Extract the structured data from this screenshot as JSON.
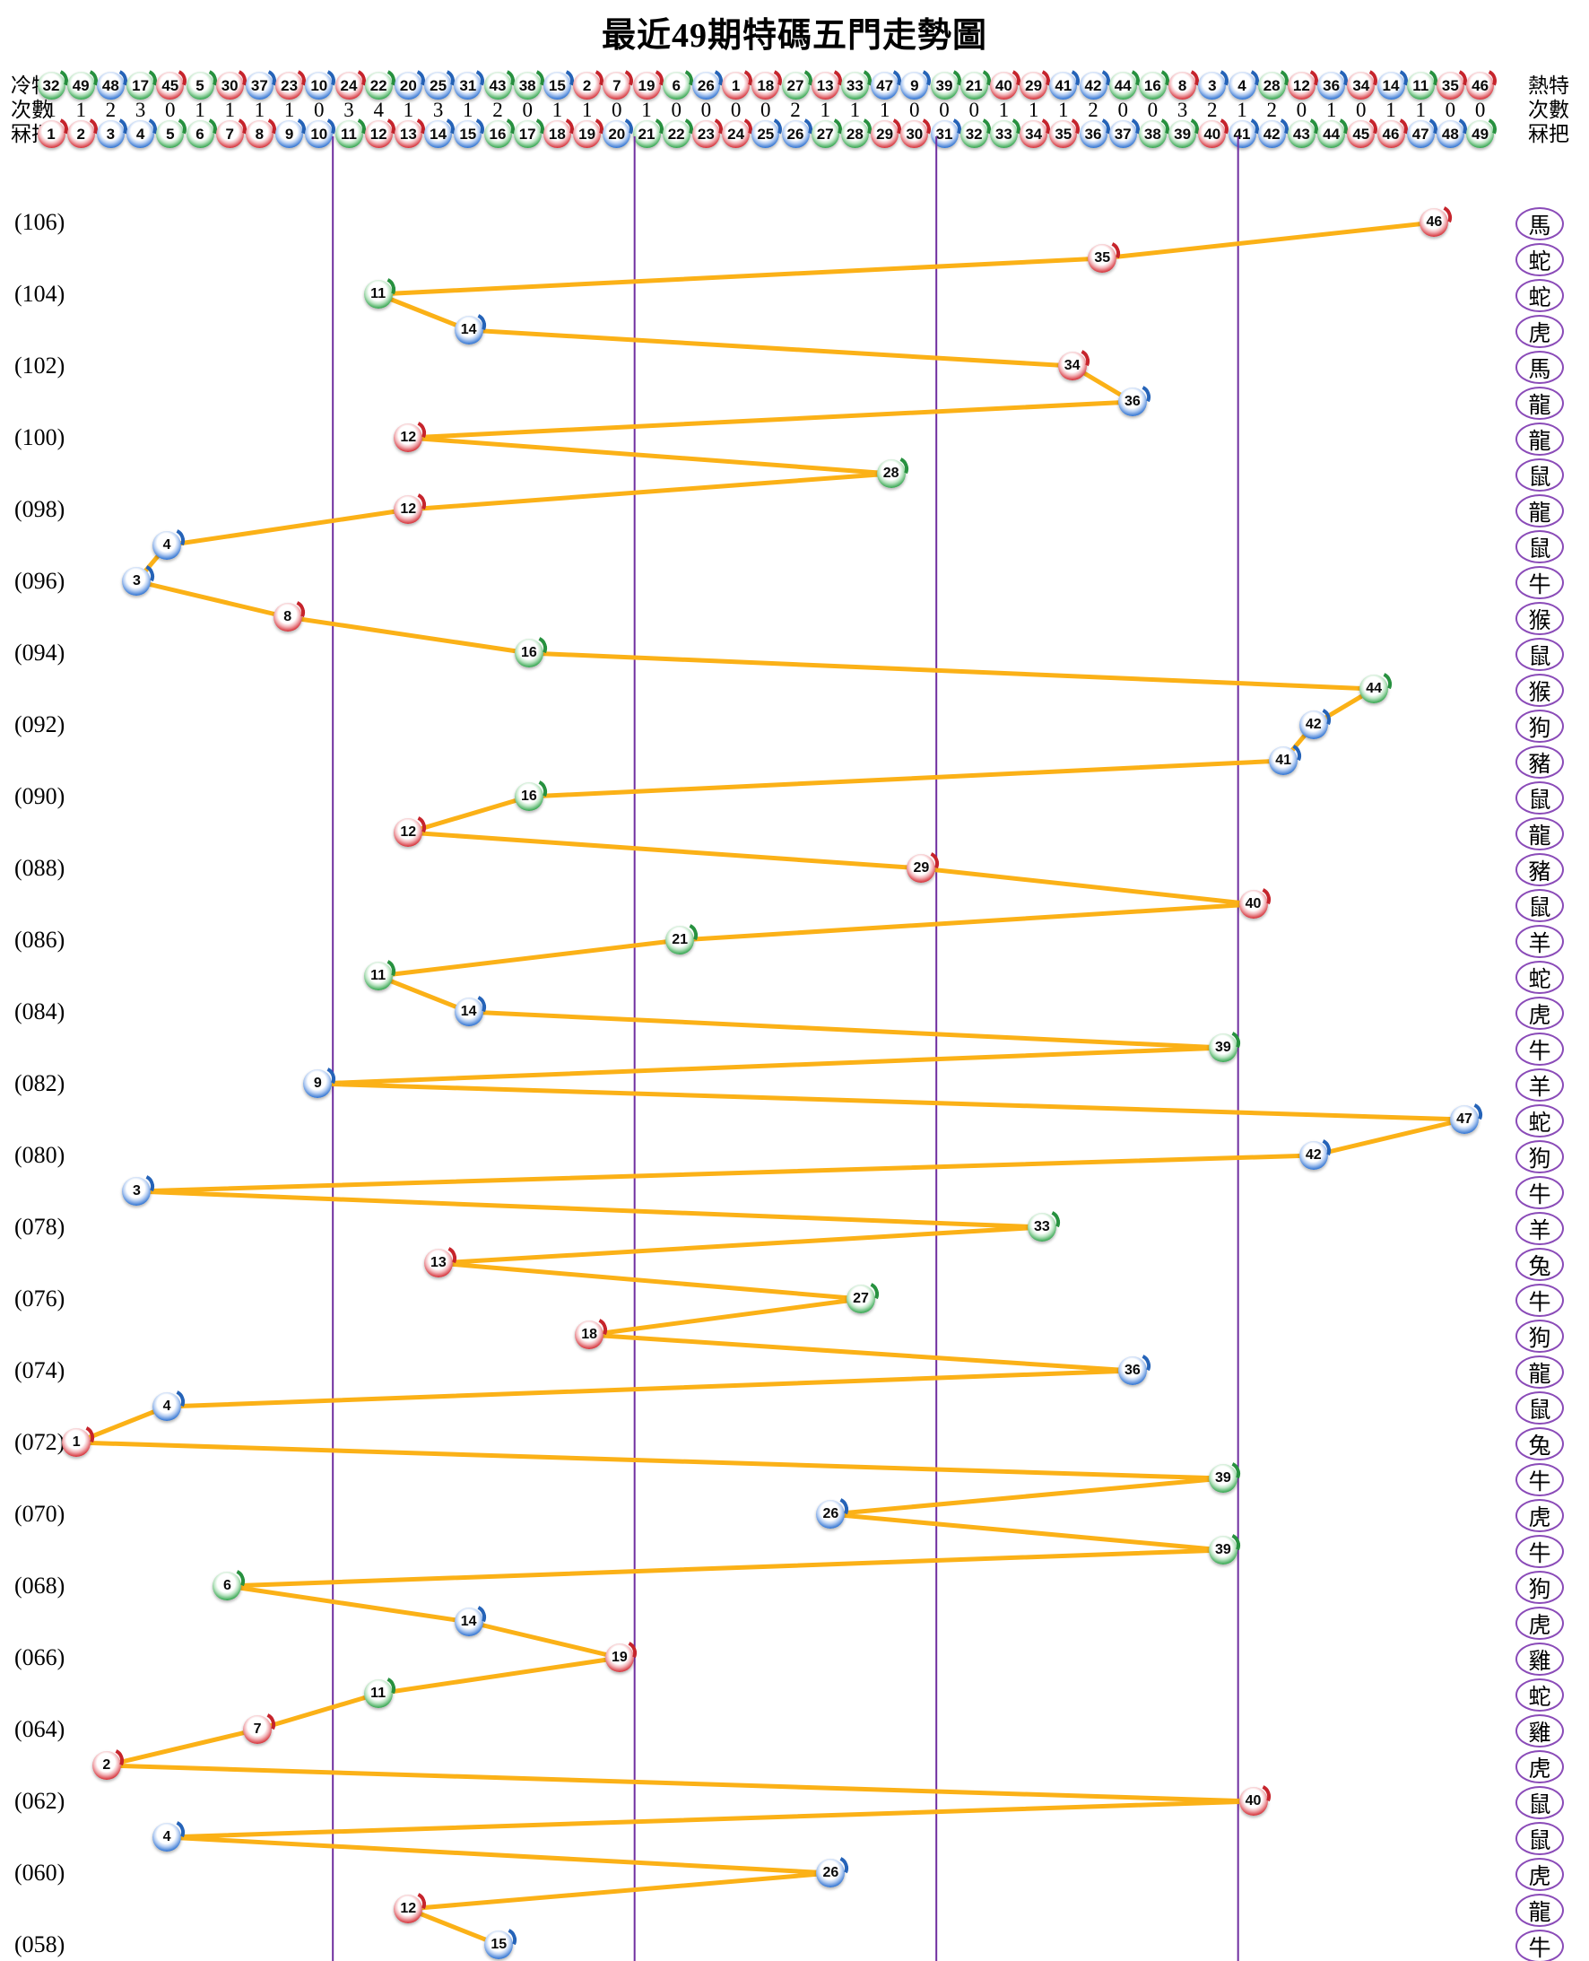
{
  "title": "最近49期特碼五門走勢圖",
  "header": {
    "cold_label": "冷特",
    "hot_label": "熱特",
    "freq_label": "次數",
    "num_label": "冧把",
    "cold_sequence": [
      32,
      49,
      48,
      17,
      45,
      5,
      30,
      37,
      23,
      10,
      24,
      22,
      20,
      25,
      31,
      43,
      38,
      15,
      2,
      7,
      19,
      6,
      26,
      1,
      18,
      27,
      13,
      33,
      47,
      9,
      39,
      21,
      40,
      29,
      41,
      42,
      44,
      16,
      8,
      3,
      4,
      28,
      12,
      36,
      34,
      14,
      11,
      35,
      46
    ],
    "frequencies": [
      1,
      1,
      2,
      3,
      0,
      1,
      1,
      1,
      1,
      0,
      3,
      4,
      1,
      3,
      1,
      2,
      0,
      1,
      1,
      0,
      1,
      0,
      0,
      0,
      0,
      2,
      1,
      1,
      1,
      0,
      0,
      0,
      1,
      1,
      1,
      2,
      0,
      0,
      3,
      2,
      1,
      2,
      0,
      1,
      0,
      1,
      1,
      0,
      0
    ],
    "numbers": [
      1,
      2,
      3,
      4,
      5,
      6,
      7,
      8,
      9,
      10,
      11,
      12,
      13,
      14,
      15,
      16,
      17,
      18,
      19,
      20,
      21,
      22,
      23,
      24,
      25,
      26,
      27,
      28,
      29,
      30,
      31,
      32,
      33,
      34,
      35,
      36,
      37,
      38,
      39,
      40,
      41,
      42,
      43,
      44,
      45,
      46,
      47,
      48,
      49
    ]
  },
  "ball_colors": {
    "red": [
      1,
      2,
      7,
      8,
      12,
      13,
      18,
      19,
      23,
      24,
      29,
      30,
      34,
      35,
      40,
      45,
      46
    ],
    "blue": [
      3,
      4,
      9,
      10,
      14,
      15,
      20,
      25,
      26,
      31,
      36,
      37,
      41,
      42,
      47,
      48
    ],
    "green": [
      5,
      6,
      11,
      16,
      17,
      21,
      22,
      27,
      28,
      32,
      33,
      38,
      39,
      43,
      44,
      49
    ],
    "red_hex": "#d42b33",
    "blue_hex": "#2a6fd0",
    "green_hex": "#2ea34a"
  },
  "chart_data": {
    "type": "line",
    "title": "最近49期特碼五門走勢圖",
    "x_range": [
      1,
      49
    ],
    "door_boundaries": [
      9.5,
      19.5,
      29.5,
      39.5
    ],
    "line_color": "#FBB117",
    "divider_color": "#7030A0",
    "grid": "five-door vertical dividers",
    "rows": [
      {
        "label": "(106)",
        "num": 46,
        "zodiac": "馬"
      },
      {
        "label": "",
        "num": 35,
        "zodiac": "蛇"
      },
      {
        "label": "(104)",
        "num": 11,
        "zodiac": "蛇"
      },
      {
        "label": "",
        "num": 14,
        "zodiac": "虎"
      },
      {
        "label": "(102)",
        "num": 34,
        "zodiac": "馬"
      },
      {
        "label": "",
        "num": 36,
        "zodiac": "龍"
      },
      {
        "label": "(100)",
        "num": 12,
        "zodiac": "龍"
      },
      {
        "label": "",
        "num": 28,
        "zodiac": "鼠"
      },
      {
        "label": "(098)",
        "num": 12,
        "zodiac": "龍"
      },
      {
        "label": "",
        "num": 4,
        "zodiac": "鼠"
      },
      {
        "label": "(096)",
        "num": 3,
        "zodiac": "牛"
      },
      {
        "label": "",
        "num": 8,
        "zodiac": "猴"
      },
      {
        "label": "(094)",
        "num": 16,
        "zodiac": "鼠"
      },
      {
        "label": "",
        "num": 44,
        "zodiac": "猴"
      },
      {
        "label": "(092)",
        "num": 42,
        "zodiac": "狗"
      },
      {
        "label": "",
        "num": 41,
        "zodiac": "豬"
      },
      {
        "label": "(090)",
        "num": 16,
        "zodiac": "鼠"
      },
      {
        "label": "",
        "num": 12,
        "zodiac": "龍"
      },
      {
        "label": "(088)",
        "num": 29,
        "zodiac": "豬"
      },
      {
        "label": "",
        "num": 40,
        "zodiac": "鼠"
      },
      {
        "label": "(086)",
        "num": 21,
        "zodiac": "羊"
      },
      {
        "label": "",
        "num": 11,
        "zodiac": "蛇"
      },
      {
        "label": "(084)",
        "num": 14,
        "zodiac": "虎"
      },
      {
        "label": "",
        "num": 39,
        "zodiac": "牛"
      },
      {
        "label": "(082)",
        "num": 9,
        "zodiac": "羊"
      },
      {
        "label": "",
        "num": 47,
        "zodiac": "蛇"
      },
      {
        "label": "(080)",
        "num": 42,
        "zodiac": "狗"
      },
      {
        "label": "",
        "num": 3,
        "zodiac": "牛"
      },
      {
        "label": "(078)",
        "num": 33,
        "zodiac": "羊"
      },
      {
        "label": "",
        "num": 13,
        "zodiac": "兔"
      },
      {
        "label": "(076)",
        "num": 27,
        "zodiac": "牛"
      },
      {
        "label": "",
        "num": 18,
        "zodiac": "狗"
      },
      {
        "label": "(074)",
        "num": 36,
        "zodiac": "龍"
      },
      {
        "label": "",
        "num": 4,
        "zodiac": "鼠"
      },
      {
        "label": "(072)",
        "num": 1,
        "zodiac": "兔"
      },
      {
        "label": "",
        "num": 39,
        "zodiac": "牛"
      },
      {
        "label": "(070)",
        "num": 26,
        "zodiac": "虎"
      },
      {
        "label": "",
        "num": 39,
        "zodiac": "牛"
      },
      {
        "label": "(068)",
        "num": 6,
        "zodiac": "狗"
      },
      {
        "label": "",
        "num": 14,
        "zodiac": "虎"
      },
      {
        "label": "(066)",
        "num": 19,
        "zodiac": "雞"
      },
      {
        "label": "",
        "num": 11,
        "zodiac": "蛇"
      },
      {
        "label": "(064)",
        "num": 7,
        "zodiac": "雞"
      },
      {
        "label": "",
        "num": 2,
        "zodiac": "虎"
      },
      {
        "label": "(062)",
        "num": 40,
        "zodiac": "鼠"
      },
      {
        "label": "",
        "num": 4,
        "zodiac": "鼠"
      },
      {
        "label": "(060)",
        "num": 26,
        "zodiac": "虎"
      },
      {
        "label": "",
        "num": 12,
        "zodiac": "龍"
      },
      {
        "label": "(058)",
        "num": 15,
        "zodiac": "牛"
      }
    ]
  }
}
